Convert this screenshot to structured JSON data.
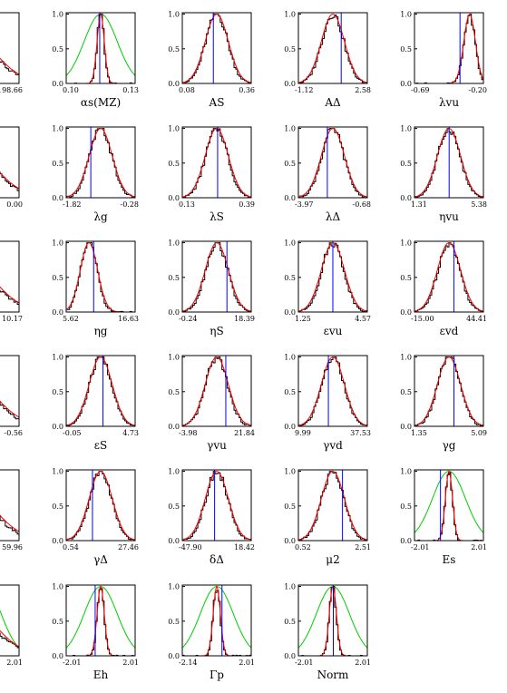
{
  "chart_data": [
    {
      "type": "histogram",
      "title": "2",
      "xlim_labels": [
        "",
        "198.66"
      ],
      "has_blue": false,
      "has_green": false,
      "shape": "broad"
    },
    {
      "type": "histogram",
      "title": "αs(MZ)",
      "xlim_labels": [
        "0.10",
        "0.13"
      ],
      "has_blue": true,
      "has_green": true,
      "shape": "narrow"
    },
    {
      "type": "histogram",
      "title": "AS",
      "xlim_labels": [
        "0.08",
        "0.36"
      ],
      "has_blue": true,
      "has_green": false,
      "shape": "normal"
    },
    {
      "type": "histogram",
      "title": "AΔ",
      "xlim_labels": [
        "-1.12",
        "2.58"
      ],
      "has_blue": true,
      "has_green": false,
      "shape": "normal"
    },
    {
      "type": "histogram",
      "title": "λvu",
      "xlim_labels": [
        "-0.69",
        "-0.20"
      ],
      "has_blue": true,
      "has_green": false,
      "shape": "right"
    },
    {
      "type": "histogram",
      "title": "",
      "xlim_labels": [
        "",
        "0.00"
      ],
      "has_blue": false,
      "has_green": false,
      "shape": "broad"
    },
    {
      "type": "histogram",
      "title": "λg",
      "xlim_labels": [
        "-1.82",
        "-0.28"
      ],
      "has_blue": true,
      "has_green": false,
      "shape": "normal"
    },
    {
      "type": "histogram",
      "title": "λS",
      "xlim_labels": [
        "0.13",
        "0.39"
      ],
      "has_blue": true,
      "has_green": false,
      "shape": "normal"
    },
    {
      "type": "histogram",
      "title": "λΔ",
      "xlim_labels": [
        "-3.97",
        "-0.68"
      ],
      "has_blue": true,
      "has_green": false,
      "shape": "normal"
    },
    {
      "type": "histogram",
      "title": "ηvu",
      "xlim_labels": [
        "1.31",
        "5.38"
      ],
      "has_blue": true,
      "has_green": false,
      "shape": "normal"
    },
    {
      "type": "histogram",
      "title": "",
      "xlim_labels": [
        "",
        "10.17"
      ],
      "has_blue": false,
      "has_green": false,
      "shape": "broad"
    },
    {
      "type": "histogram",
      "title": "ηg",
      "xlim_labels": [
        "5.62",
        "16.63"
      ],
      "has_blue": true,
      "has_green": false,
      "shape": "left"
    },
    {
      "type": "histogram",
      "title": "ηS",
      "xlim_labels": [
        "-0.24",
        "18.39"
      ],
      "has_blue": true,
      "has_green": false,
      "shape": "normal"
    },
    {
      "type": "histogram",
      "title": "εvu",
      "xlim_labels": [
        "1.25",
        "4.57"
      ],
      "has_blue": true,
      "has_green": false,
      "shape": "normal"
    },
    {
      "type": "histogram",
      "title": "εvd",
      "xlim_labels": [
        "-15.00",
        "44.41"
      ],
      "has_blue": true,
      "has_green": false,
      "shape": "normal"
    },
    {
      "type": "histogram",
      "title": "",
      "xlim_labels": [
        "",
        "-0.56"
      ],
      "has_blue": false,
      "has_green": false,
      "shape": "broad"
    },
    {
      "type": "histogram",
      "title": "εS",
      "xlim_labels": [
        "-0.05",
        "4.73"
      ],
      "has_blue": true,
      "has_green": false,
      "shape": "normal"
    },
    {
      "type": "histogram",
      "title": "γvu",
      "xlim_labels": [
        "-3.98",
        "21.84"
      ],
      "has_blue": true,
      "has_green": false,
      "shape": "normal"
    },
    {
      "type": "histogram",
      "title": "γvd",
      "xlim_labels": [
        "9.99",
        "37.53"
      ],
      "has_blue": true,
      "has_green": false,
      "shape": "normal"
    },
    {
      "type": "histogram",
      "title": "γg",
      "xlim_labels": [
        "1.35",
        "5.09"
      ],
      "has_blue": true,
      "has_green": false,
      "shape": "normal"
    },
    {
      "type": "histogram",
      "title": "",
      "xlim_labels": [
        "",
        "59.96"
      ],
      "has_blue": false,
      "has_green": false,
      "shape": "broad"
    },
    {
      "type": "histogram",
      "title": "γΔ",
      "xlim_labels": [
        "0.54",
        "27.46"
      ],
      "has_blue": true,
      "has_green": false,
      "shape": "normal"
    },
    {
      "type": "histogram",
      "title": "δΔ",
      "xlim_labels": [
        "-47.90",
        "18.42"
      ],
      "has_blue": true,
      "has_green": false,
      "shape": "normal"
    },
    {
      "type": "histogram",
      "title": "μ2",
      "xlim_labels": [
        "0.52",
        "2.51"
      ],
      "has_blue": true,
      "has_green": false,
      "shape": "normal"
    },
    {
      "type": "histogram",
      "title": "Es",
      "xlim_labels": [
        "-2.01",
        "2.01"
      ],
      "has_blue": true,
      "has_green": true,
      "shape": "narrow"
    },
    {
      "type": "histogram",
      "title": "",
      "xlim_labels": [
        "",
        "2.01"
      ],
      "has_blue": false,
      "has_green": true,
      "shape": "broad"
    },
    {
      "type": "histogram",
      "title": "Eh",
      "xlim_labels": [
        "-2.01",
        "2.01"
      ],
      "has_blue": true,
      "has_green": true,
      "shape": "narrow"
    },
    {
      "type": "histogram",
      "title": "Γp",
      "xlim_labels": [
        "-2.14",
        "2.01"
      ],
      "has_blue": true,
      "has_green": true,
      "shape": "narrow"
    },
    {
      "type": "histogram",
      "title": "Norm",
      "xlim_labels": [
        "-2.01",
        "2.01"
      ],
      "has_blue": true,
      "has_green": true,
      "shape": "narrow"
    }
  ],
  "y_ticks": [
    "0.0",
    "0.5",
    "1.0"
  ],
  "colors": {
    "hist": "#000000",
    "fit": "#ff0000",
    "marker": "#0000ff",
    "prior": "#00cc00"
  }
}
